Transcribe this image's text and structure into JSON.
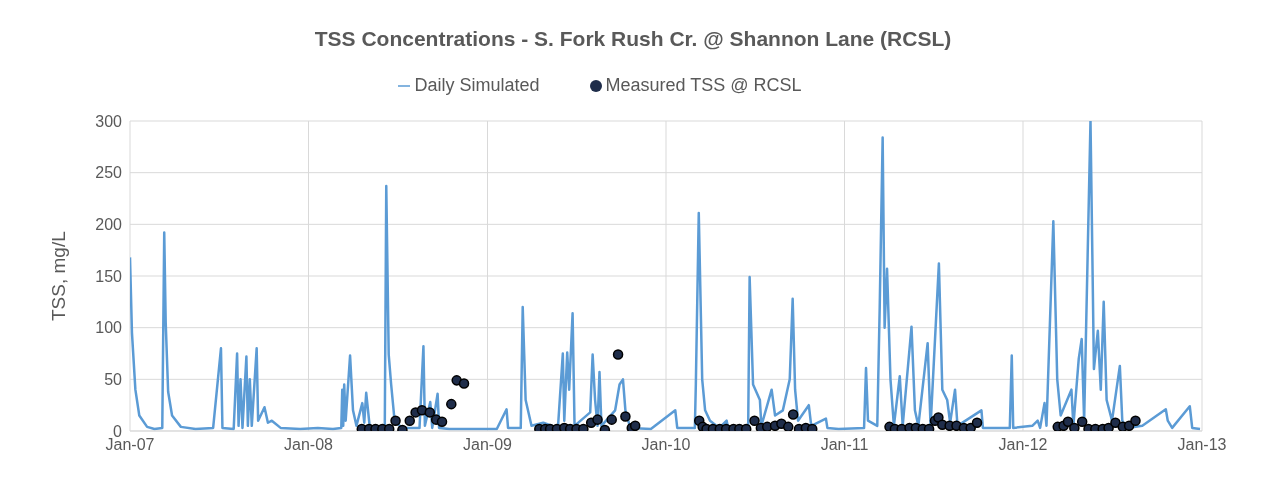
{
  "chart_data": {
    "type": "line",
    "title": "TSS Concentrations - S. Fork Rush Cr. @ Shannon Lane (RCSL)",
    "ylabel": "TSS, mg/L",
    "xlim": [
      "2007-01-01",
      "2013-01-01"
    ],
    "xticks": [
      {
        "value": "2007-01-01",
        "label": "Jan-07"
      },
      {
        "value": "2008-01-01",
        "label": "Jan-08"
      },
      {
        "value": "2009-01-01",
        "label": "Jan-09"
      },
      {
        "value": "2010-01-01",
        "label": "Jan-10"
      },
      {
        "value": "2011-01-01",
        "label": "Jan-11"
      },
      {
        "value": "2012-01-01",
        "label": "Jan-12"
      },
      {
        "value": "2013-01-01",
        "label": "Jan-13"
      }
    ],
    "ylim": [
      0,
      300
    ],
    "yticks": [
      0,
      50,
      100,
      150,
      200,
      250,
      300
    ],
    "grid": true,
    "legend": "top",
    "series": [
      {
        "name": "Daily Simulated",
        "color": "#5b9bd5",
        "marker": "none",
        "line_style": "solid",
        "x": [
          "2007-01-01",
          "2007-01-05",
          "2007-01-12",
          "2007-01-20",
          "2007-02-05",
          "2007-02-20",
          "2007-03-08",
          "2007-03-12",
          "2007-03-15",
          "2007-03-20",
          "2007-03-28",
          "2007-04-15",
          "2007-05-15",
          "2007-06-20",
          "2007-07-06",
          "2007-07-09",
          "2007-08-01",
          "2007-08-08",
          "2007-08-11",
          "2007-08-15",
          "2007-08-19",
          "2007-08-27",
          "2007-08-30",
          "2007-09-03",
          "2007-09-07",
          "2007-09-17",
          "2007-09-20",
          "2007-10-03",
          "2007-10-10",
          "2007-10-18",
          "2007-11-05",
          "2007-12-15",
          "2008-01-20",
          "2008-02-20",
          "2008-03-08",
          "2008-03-10",
          "2008-03-12",
          "2008-03-14",
          "2008-03-17",
          "2008-03-26",
          "2008-04-01",
          "2008-04-08",
          "2008-04-20",
          "2008-04-24",
          "2008-04-28",
          "2008-05-05",
          "2008-05-25",
          "2008-06-05",
          "2008-06-08",
          "2008-06-13",
          "2008-06-18",
          "2008-06-25",
          "2008-07-10",
          "2008-08-15",
          "2008-08-23",
          "2008-08-26",
          "2008-09-06",
          "2008-09-10",
          "2008-09-21",
          "2008-09-24",
          "2008-10-15",
          "2008-12-01",
          "2009-01-20",
          "2009-02-09",
          "2009-02-12",
          "2009-03-10",
          "2009-03-14",
          "2009-03-20",
          "2009-04-01",
          "2009-04-25",
          "2009-05-25",
          "2009-06-04",
          "2009-06-07",
          "2009-06-13",
          "2009-06-17",
          "2009-06-24",
          "2009-06-28",
          "2009-07-30",
          "2009-08-04",
          "2009-08-09",
          "2009-08-14",
          "2009-08-18",
          "2009-08-22",
          "2009-09-19",
          "2009-09-28",
          "2009-10-05",
          "2009-10-10",
          "2009-10-20",
          "2009-12-01",
          "2010-01-20",
          "2010-01-24",
          "2010-03-01",
          "2010-03-03",
          "2010-03-09",
          "2010-03-16",
          "2010-03-22",
          "2010-04-01",
          "2010-04-20",
          "2010-05-05",
          "2010-05-08",
          "2010-06-18",
          "2010-06-21",
          "2010-06-28",
          "2010-07-12",
          "2010-07-15",
          "2010-08-05",
          "2010-08-12",
          "2010-08-28",
          "2010-09-11",
          "2010-09-17",
          "2010-09-22",
          "2010-09-28",
          "2010-10-20",
          "2010-10-25",
          "2010-11-24",
          "2010-11-27",
          "2010-12-20",
          "2011-02-10",
          "2011-02-14",
          "2011-02-18",
          "2011-03-09",
          "2011-03-14",
          "2011-03-20",
          "2011-03-24",
          "2011-03-29",
          "2011-04-05",
          "2011-04-12",
          "2011-04-24",
          "2011-04-30",
          "2011-05-18",
          "2011-05-25",
          "2011-06-01",
          "2011-06-20",
          "2011-06-26",
          "2011-07-13",
          "2011-07-20",
          "2011-07-30",
          "2011-08-05",
          "2011-08-15",
          "2011-08-20",
          "2011-10-08",
          "2011-10-11",
          "2011-12-05",
          "2011-12-09",
          "2011-12-12",
          "2012-01-20",
          "2012-01-31",
          "2012-02-05",
          "2012-02-14",
          "2012-02-18",
          "2012-03-03",
          "2012-03-11",
          "2012-03-18",
          "2012-04-09",
          "2012-04-13",
          "2012-04-24",
          "2012-04-30",
          "2012-05-05",
          "2012-05-18",
          "2012-05-25",
          "2012-06-02",
          "2012-06-08",
          "2012-06-14",
          "2012-06-20",
          "2012-07-01",
          "2012-07-17",
          "2012-07-22",
          "2012-08-01",
          "2012-09-01",
          "2012-10-19",
          "2012-10-23",
          "2012-11-01",
          "2012-12-07",
          "2012-12-12",
          "2012-12-28"
        ],
        "values": [
          168,
          95,
          40,
          15,
          4,
          2,
          3,
          192,
          105,
          38,
          15,
          4,
          2,
          3,
          80,
          3,
          2,
          75,
          5,
          50,
          3,
          72,
          5,
          50,
          5,
          80,
          10,
          23,
          8,
          10,
          3,
          2,
          3,
          2,
          3,
          40,
          5,
          45,
          10,
          73,
          20,
          5,
          27,
          8,
          37,
          5,
          3,
          5,
          237,
          74,
          45,
          10,
          3,
          3,
          82,
          5,
          28,
          3,
          36,
          3,
          2,
          2,
          2,
          21,
          3,
          3,
          120,
          30,
          5,
          8,
          3,
          75,
          10,
          76,
          40,
          114,
          5,
          18,
          74,
          30,
          5,
          57,
          5,
          20,
          45,
          50,
          20,
          3,
          2,
          20,
          3,
          3,
          45,
          211,
          50,
          20,
          10,
          3,
          10,
          3,
          3,
          149,
          45,
          30,
          5,
          40,
          15,
          20,
          50,
          128,
          40,
          10,
          25,
          5,
          12,
          3,
          2,
          3,
          61,
          10,
          5,
          120,
          284,
          100,
          157,
          50,
          5,
          53,
          5,
          101,
          20,
          5,
          85,
          5,
          162,
          40,
          30,
          8,
          40,
          5,
          20,
          3,
          3,
          73,
          3,
          5,
          10,
          3,
          27,
          5,
          203,
          50,
          15,
          40,
          5,
          70,
          89,
          10,
          300,
          60,
          97,
          40,
          125,
          30,
          10,
          63,
          10,
          3,
          5,
          21,
          10,
          3,
          24,
          3,
          2
        ]
      },
      {
        "name": "Measured TSS @ RCSL",
        "type": "scatter",
        "color": "#1f2d4a",
        "marker": "circle",
        "x": [
          "2008-04-19",
          "2008-05-04",
          "2008-05-17",
          "2008-05-31",
          "2008-06-14",
          "2008-06-27",
          "2008-07-11",
          "2008-07-26",
          "2008-08-07",
          "2008-08-20",
          "2008-09-05",
          "2008-09-18",
          "2008-09-30",
          "2008-10-19",
          "2008-10-30",
          "2008-11-14",
          "2009-04-17",
          "2009-04-29",
          "2009-05-09",
          "2009-05-23",
          "2009-06-07",
          "2009-06-19",
          "2009-07-02",
          "2009-07-16",
          "2009-08-01",
          "2009-08-14",
          "2009-08-29",
          "2009-09-12",
          "2009-09-25",
          "2009-10-10",
          "2009-10-23",
          "2009-10-30",
          "2010-03-10",
          "2010-03-17",
          "2010-03-25",
          "2010-04-07",
          "2010-04-21",
          "2010-05-04",
          "2010-05-19",
          "2010-05-31",
          "2010-06-14",
          "2010-07-01",
          "2010-07-14",
          "2010-07-27",
          "2010-08-12",
          "2010-08-25",
          "2010-09-08",
          "2010-09-18",
          "2010-09-30",
          "2010-10-14",
          "2010-10-27",
          "2011-04-03",
          "2011-04-14",
          "2011-04-28",
          "2011-05-14",
          "2011-05-27",
          "2011-06-10",
          "2011-06-23",
          "2011-07-05",
          "2011-07-12",
          "2011-07-20",
          "2011-08-04",
          "2011-08-18",
          "2011-09-02",
          "2011-09-16",
          "2011-09-29",
          "2012-03-12",
          "2012-03-24",
          "2012-04-02",
          "2012-04-15",
          "2012-05-01",
          "2012-05-14",
          "2012-05-28",
          "2012-06-12",
          "2012-06-24",
          "2012-07-08",
          "2012-07-23",
          "2012-08-05",
          "2012-08-18"
        ],
        "values": [
          2,
          2,
          2,
          2,
          2,
          10,
          1,
          10,
          18,
          20,
          18,
          11,
          9,
          26,
          49,
          46,
          2,
          2,
          2,
          2,
          3,
          2,
          2,
          2,
          8,
          11,
          1,
          11,
          74,
          14,
          3,
          5,
          10,
          4,
          2,
          2,
          2,
          2,
          2,
          2,
          2,
          10,
          3,
          4,
          5,
          7,
          4,
          16,
          2,
          3,
          2,
          4,
          2,
          2,
          3,
          3,
          2,
          2,
          10,
          13,
          6,
          5,
          5,
          3,
          3,
          8,
          4,
          5,
          9,
          3,
          9,
          2,
          2,
          2,
          3,
          8,
          4,
          5,
          10
        ]
      }
    ]
  }
}
